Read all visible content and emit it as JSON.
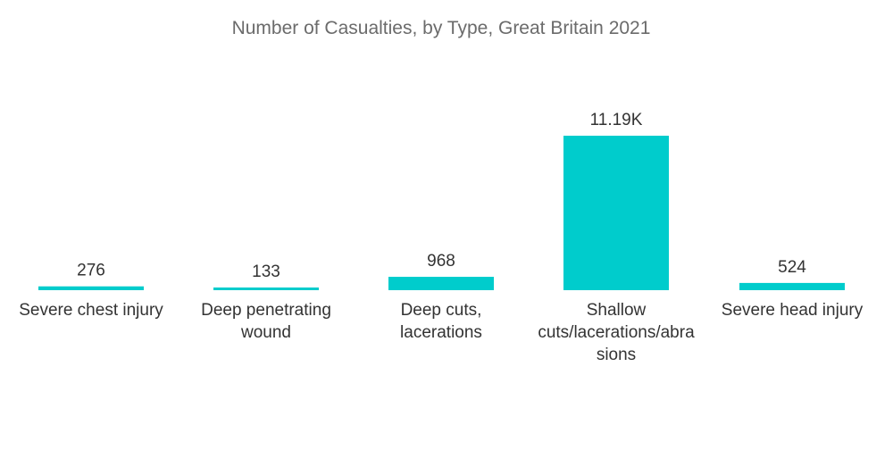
{
  "chart_data": {
    "type": "bar",
    "title": "Number of Casualties, by Type, Great Britain 2021",
    "categories": [
      "Severe chest injury",
      "Deep penetrating wound",
      "Deep cuts, lacerations",
      "Shallow cuts/lacerations/abrasions",
      "Severe head injury"
    ],
    "category_label_lines": [
      [
        "Severe chest injury"
      ],
      [
        "Deep penetrating",
        "wound"
      ],
      [
        "Deep cuts,",
        "lacerations"
      ],
      [
        "Shallow",
        "cuts/lacerations/abra",
        "sions"
      ],
      [
        "Severe head injury"
      ]
    ],
    "values": [
      276,
      133,
      968,
      11190,
      524
    ],
    "value_labels": [
      "276",
      "133",
      "968",
      "11.19K",
      "524"
    ],
    "xlabel": "",
    "ylabel": "",
    "ylim": [
      0,
      11190
    ],
    "grid": false,
    "legend": "none",
    "bar_color": "#00CCCC"
  }
}
